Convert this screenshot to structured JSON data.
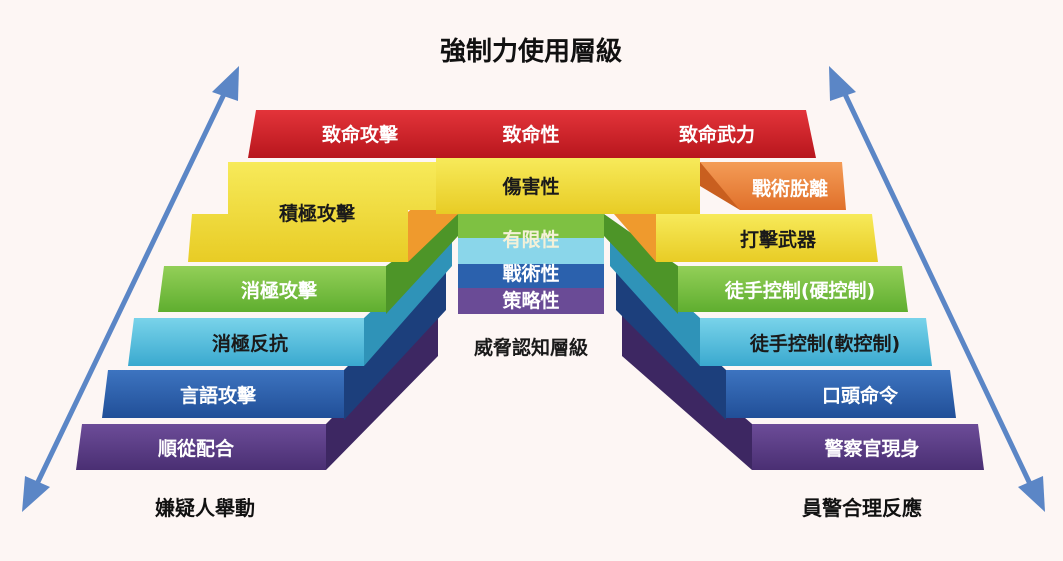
{
  "title": "強制力使用層級",
  "left_axis_label": "嫌疑人舉動",
  "right_axis_label": "員警合理反應",
  "center_caption": "威脅認知層級",
  "levels": [
    {
      "left": "致命攻擊",
      "center": "致命性",
      "right": "致命武力",
      "color": "#d42128"
    },
    {
      "left": "積極攻擊",
      "center": "傷害性",
      "right": "戰術脫離",
      "color": "#f1dd3a",
      "right_color": "#ef8a3e"
    },
    {
      "left": "",
      "center": "有限性",
      "right": "打擊武器",
      "color": "#f1dd3a"
    },
    {
      "left": "消極攻擊",
      "center": "戰術性",
      "right": "徒手控制(硬控制)",
      "color": "#7ec142"
    },
    {
      "left": "消極反抗",
      "center": "策略性",
      "right": "徒手控制(軟控制)",
      "color": "#54c3e0"
    },
    {
      "left": "言語攻擊",
      "center": "",
      "right": "口頭命令",
      "color": "#2b61ad"
    },
    {
      "left": "順從配合",
      "center": "",
      "right": "警察官現身",
      "color": "#5b3d86"
    }
  ],
  "colors": {
    "arrow": "#5b86c6",
    "red": "#d42128",
    "yellow": "#f1dd3a",
    "orange": "#ef8a3e",
    "green": "#7ec142",
    "cyan": "#54c3e0",
    "blue": "#2b61ad",
    "purple": "#5b3d86"
  }
}
